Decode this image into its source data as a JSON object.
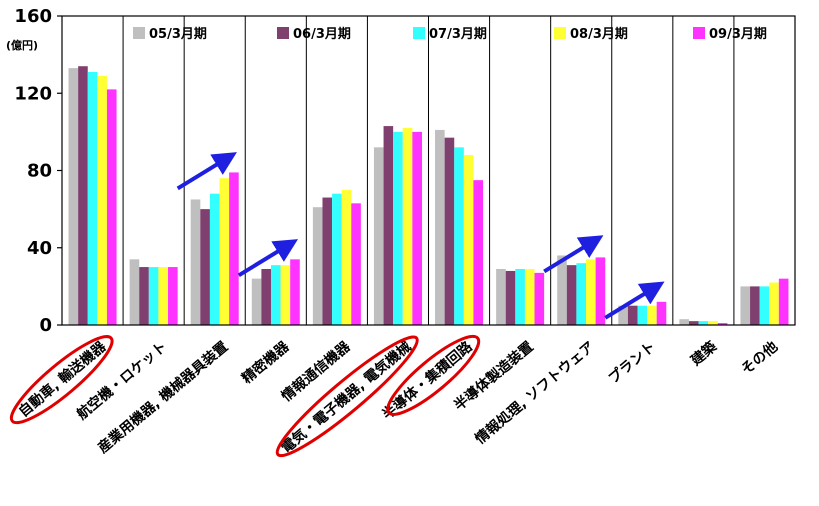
{
  "chart_data": {
    "type": "bar",
    "title": "",
    "ylabel": "",
    "unit_label": "(億円)",
    "ylim": [
      0,
      160
    ],
    "yticks": [
      "0",
      "40",
      "80",
      "120",
      "160"
    ],
    "legend_position": "top",
    "grid": "vertical",
    "categories": [
      "自動車, 輸送機器",
      "航空機・ロケット",
      "産業用機器, 機械器具装置",
      "精密機器",
      "情報通信機器",
      "電気・電子機器, 電気機械",
      "半導体・集積回路",
      "半導体製造装置",
      "情報処理, ソフトウェア",
      "プラント",
      "建築",
      "その他"
    ],
    "series": [
      {
        "name": "05/3月期",
        "color": "#bfbfbf",
        "values": [
          133,
          34,
          65,
          24,
          61,
          92,
          101,
          29,
          36,
          10,
          3,
          20
        ]
      },
      {
        "name": "06/3月期",
        "color": "#7f3f6f",
        "values": [
          134,
          30,
          60,
          29,
          66,
          103,
          97,
          28,
          31,
          10,
          2,
          20
        ]
      },
      {
        "name": "07/3月期",
        "color": "#33ffff",
        "values": [
          131,
          30,
          68,
          31,
          68,
          100,
          92,
          29,
          32,
          10,
          2,
          20
        ]
      },
      {
        "name": "08/3月期",
        "color": "#ffff33",
        "values": [
          129,
          30,
          76,
          31,
          70,
          102,
          88,
          29,
          34,
          10,
          2,
          22
        ]
      },
      {
        "name": "09/3月期",
        "color": "#ff33ff",
        "values": [
          122,
          30,
          79,
          34,
          63,
          100,
          75,
          27,
          35,
          12,
          1,
          24
        ]
      }
    ],
    "annotations": {
      "rising_arrows_on": [
        "産業用機器, 機械器具装置",
        "精密機器",
        "情報処理, ソフトウェア",
        "プラント"
      ],
      "circled_labels": [
        "自動車, 輸送機器",
        "電気・電子機器, 電気機械",
        "半導体・集積回路"
      ]
    }
  }
}
